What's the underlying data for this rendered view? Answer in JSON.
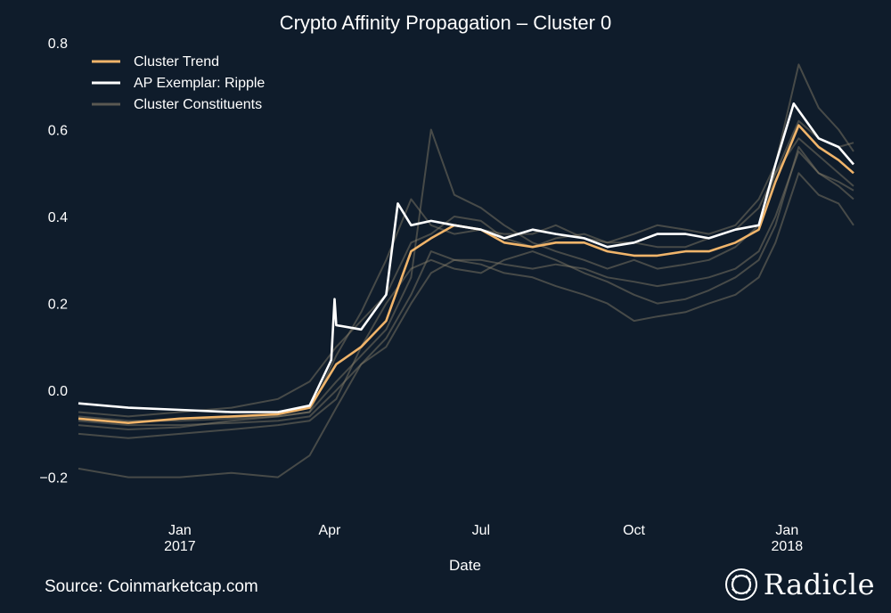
{
  "chart_data": {
    "type": "line",
    "title": "Crypto Affinity Propagation – Cluster 0",
    "xlabel": "Date",
    "ylabel": "",
    "x_range": [
      "2016-11-01",
      "2018-02-10"
    ],
    "ylim": [
      -0.25,
      0.8
    ],
    "y_ticks": [
      "0.8",
      "0.6",
      "0.4",
      "0.2",
      "0.0",
      "−0.2"
    ],
    "x_ticks": [
      {
        "date": "2017-01-01",
        "label": "Jan",
        "sublabel": "2017"
      },
      {
        "date": "2017-04-01",
        "label": "Apr",
        "sublabel": ""
      },
      {
        "date": "2017-07-01",
        "label": "Jul",
        "sublabel": ""
      },
      {
        "date": "2017-10-01",
        "label": "Oct",
        "sublabel": ""
      },
      {
        "date": "2018-01-01",
        "label": "Jan",
        "sublabel": "2018"
      }
    ],
    "grid": false,
    "legend_position": "top-left",
    "legend": [
      "Cluster Trend",
      "AP Exemplar: Ripple",
      "Cluster Constituents"
    ],
    "series": [
      {
        "name": "Cluster Trend",
        "color": "#f0b46a",
        "role": "trend",
        "x": [
          "2016-11-01",
          "2016-12-01",
          "2017-01-01",
          "2017-02-01",
          "2017-03-01",
          "2017-03-20",
          "2017-04-05",
          "2017-04-20",
          "2017-05-05",
          "2017-05-20",
          "2017-06-01",
          "2017-06-15",
          "2017-07-01",
          "2017-07-15",
          "2017-08-01",
          "2017-08-15",
          "2017-09-01",
          "2017-09-15",
          "2017-10-01",
          "2017-10-15",
          "2017-11-01",
          "2017-11-15",
          "2017-12-01",
          "2017-12-15",
          "2017-12-25",
          "2018-01-08",
          "2018-01-20",
          "2018-02-01",
          "2018-02-10"
        ],
        "y": [
          -0.065,
          -0.075,
          -0.065,
          -0.06,
          -0.055,
          -0.04,
          0.06,
          0.1,
          0.16,
          0.32,
          0.35,
          0.38,
          0.37,
          0.34,
          0.33,
          0.34,
          0.34,
          0.32,
          0.31,
          0.31,
          0.32,
          0.32,
          0.34,
          0.37,
          0.48,
          0.61,
          0.56,
          0.53,
          0.5
        ]
      },
      {
        "name": "AP Exemplar: Ripple",
        "color": "#ffffff",
        "role": "exemplar",
        "x": [
          "2016-11-01",
          "2016-12-01",
          "2017-01-01",
          "2017-02-01",
          "2017-03-01",
          "2017-03-20",
          "2017-04-02",
          "2017-04-04",
          "2017-04-05",
          "2017-04-20",
          "2017-05-05",
          "2017-05-12",
          "2017-05-20",
          "2017-06-01",
          "2017-06-15",
          "2017-07-01",
          "2017-07-15",
          "2017-08-01",
          "2017-08-15",
          "2017-09-01",
          "2017-09-15",
          "2017-10-01",
          "2017-10-15",
          "2017-11-01",
          "2017-11-15",
          "2017-12-01",
          "2017-12-15",
          "2017-12-25",
          "2018-01-05",
          "2018-01-20",
          "2018-02-01",
          "2018-02-10"
        ],
        "y": [
          -0.03,
          -0.04,
          -0.045,
          -0.05,
          -0.05,
          -0.035,
          0.07,
          0.21,
          0.15,
          0.14,
          0.22,
          0.43,
          0.38,
          0.39,
          0.38,
          0.37,
          0.35,
          0.37,
          0.36,
          0.35,
          0.33,
          0.34,
          0.36,
          0.36,
          0.35,
          0.37,
          0.38,
          0.52,
          0.66,
          0.58,
          0.56,
          0.52
        ]
      },
      {
        "name": "Cluster Constituents",
        "color": "#8c826c",
        "role": "constituent",
        "x": [
          "2016-11-01",
          "2016-12-01",
          "2017-01-01",
          "2017-02-01",
          "2017-03-01",
          "2017-03-20",
          "2017-04-05",
          "2017-04-20",
          "2017-05-05",
          "2017-05-20",
          "2017-06-01",
          "2017-06-15",
          "2017-07-01",
          "2017-07-15",
          "2017-08-01",
          "2017-08-15",
          "2017-09-01",
          "2017-09-15",
          "2017-10-01",
          "2017-10-15",
          "2017-11-01",
          "2017-11-15",
          "2017-12-01",
          "2017-12-15",
          "2017-12-25",
          "2018-01-08",
          "2018-01-20",
          "2018-02-01",
          "2018-02-10"
        ],
        "y": [
          -0.08,
          -0.09,
          -0.085,
          -0.07,
          -0.06,
          -0.05,
          0.08,
          0.18,
          0.3,
          0.44,
          0.38,
          0.36,
          0.37,
          0.36,
          0.36,
          0.38,
          0.35,
          0.34,
          0.36,
          0.38,
          0.37,
          0.36,
          0.38,
          0.44,
          0.52,
          0.75,
          0.65,
          0.6,
          0.55
        ]
      },
      {
        "name": "Cluster Constituents",
        "color": "#8c826c",
        "role": "constituent",
        "x": [
          "2016-11-01",
          "2016-12-01",
          "2017-01-01",
          "2017-02-01",
          "2017-03-01",
          "2017-03-20",
          "2017-04-05",
          "2017-04-20",
          "2017-05-05",
          "2017-05-20",
          "2017-06-01",
          "2017-06-15",
          "2017-07-01",
          "2017-07-15",
          "2017-08-01",
          "2017-08-15",
          "2017-09-01",
          "2017-09-15",
          "2017-10-01",
          "2017-10-15",
          "2017-11-01",
          "2017-11-15",
          "2017-12-01",
          "2017-12-15",
          "2017-12-25",
          "2018-01-08",
          "2018-01-20",
          "2018-02-01",
          "2018-02-10"
        ],
        "y": [
          -0.06,
          -0.07,
          -0.07,
          -0.065,
          -0.06,
          -0.05,
          0.02,
          0.08,
          0.14,
          0.26,
          0.6,
          0.45,
          0.42,
          0.38,
          0.34,
          0.32,
          0.3,
          0.28,
          0.3,
          0.28,
          0.29,
          0.3,
          0.33,
          0.38,
          0.5,
          0.58,
          0.54,
          0.5,
          0.47
        ]
      },
      {
        "name": "Cluster Constituents",
        "color": "#8c826c",
        "role": "constituent",
        "x": [
          "2016-11-01",
          "2016-12-01",
          "2017-01-01",
          "2017-02-01",
          "2017-03-01",
          "2017-03-20",
          "2017-04-05",
          "2017-04-20",
          "2017-05-05",
          "2017-05-20",
          "2017-06-01",
          "2017-06-15",
          "2017-07-01",
          "2017-07-15",
          "2017-08-01",
          "2017-08-15",
          "2017-09-01",
          "2017-09-15",
          "2017-10-01",
          "2017-10-15",
          "2017-11-01",
          "2017-11-15",
          "2017-12-01",
          "2017-12-15",
          "2017-12-25",
          "2018-01-08",
          "2018-01-20",
          "2018-02-01",
          "2018-02-10"
        ],
        "y": [
          -0.1,
          -0.11,
          -0.1,
          -0.09,
          -0.08,
          -0.07,
          -0.02,
          0.1,
          0.2,
          0.28,
          0.3,
          0.28,
          0.27,
          0.3,
          0.32,
          0.3,
          0.27,
          0.25,
          0.22,
          0.2,
          0.21,
          0.23,
          0.26,
          0.3,
          0.38,
          0.56,
          0.5,
          0.47,
          0.44
        ]
      },
      {
        "name": "Cluster Constituents",
        "color": "#8c826c",
        "role": "constituent",
        "x": [
          "2016-11-01",
          "2016-12-01",
          "2017-01-01",
          "2017-02-01",
          "2017-03-01",
          "2017-03-20",
          "2017-04-05",
          "2017-04-20",
          "2017-05-05",
          "2017-05-20",
          "2017-06-01",
          "2017-06-15",
          "2017-07-01",
          "2017-07-15",
          "2017-08-01",
          "2017-08-15",
          "2017-09-01",
          "2017-09-15",
          "2017-10-01",
          "2017-10-15",
          "2017-11-01",
          "2017-11-15",
          "2017-12-01",
          "2017-12-15",
          "2017-12-25",
          "2018-01-08",
          "2018-01-20",
          "2018-02-01",
          "2018-02-10"
        ],
        "y": [
          -0.18,
          -0.2,
          -0.2,
          -0.19,
          -0.2,
          -0.15,
          -0.04,
          0.06,
          0.12,
          0.22,
          0.32,
          0.3,
          0.29,
          0.27,
          0.26,
          0.24,
          0.22,
          0.2,
          0.16,
          0.17,
          0.18,
          0.2,
          0.22,
          0.26,
          0.34,
          0.5,
          0.45,
          0.43,
          0.38
        ]
      },
      {
        "name": "Cluster Constituents",
        "color": "#8c826c",
        "role": "constituent",
        "x": [
          "2016-11-01",
          "2016-12-01",
          "2017-01-01",
          "2017-02-01",
          "2017-03-01",
          "2017-03-20",
          "2017-04-05",
          "2017-04-20",
          "2017-05-05",
          "2017-05-20",
          "2017-06-01",
          "2017-06-15",
          "2017-07-01",
          "2017-07-15",
          "2017-08-01",
          "2017-08-15",
          "2017-09-01",
          "2017-09-15",
          "2017-10-01",
          "2017-10-15",
          "2017-11-01",
          "2017-11-15",
          "2017-12-01",
          "2017-12-15",
          "2017-12-25",
          "2018-01-08",
          "2018-01-20",
          "2018-02-01",
          "2018-02-10"
        ],
        "y": [
          -0.05,
          -0.06,
          -0.05,
          -0.04,
          -0.02,
          0.02,
          0.1,
          0.16,
          0.22,
          0.34,
          0.36,
          0.4,
          0.39,
          0.35,
          0.33,
          0.35,
          0.36,
          0.34,
          0.34,
          0.33,
          0.33,
          0.35,
          0.37,
          0.42,
          0.5,
          0.62,
          0.58,
          0.56,
          0.57
        ]
      },
      {
        "name": "Cluster Constituents",
        "color": "#8c826c",
        "role": "constituent",
        "x": [
          "2016-11-01",
          "2016-12-01",
          "2017-01-01",
          "2017-02-01",
          "2017-03-01",
          "2017-03-20",
          "2017-04-05",
          "2017-04-20",
          "2017-05-05",
          "2017-05-20",
          "2017-06-01",
          "2017-06-15",
          "2017-07-01",
          "2017-07-15",
          "2017-08-01",
          "2017-08-15",
          "2017-09-01",
          "2017-09-15",
          "2017-10-01",
          "2017-10-15",
          "2017-11-01",
          "2017-11-15",
          "2017-12-01",
          "2017-12-15",
          "2017-12-25",
          "2018-01-08",
          "2018-01-20",
          "2018-02-01",
          "2018-02-10"
        ],
        "y": [
          -0.07,
          -0.08,
          -0.08,
          -0.075,
          -0.07,
          -0.06,
          0.0,
          0.06,
          0.1,
          0.2,
          0.27,
          0.3,
          0.3,
          0.29,
          0.28,
          0.29,
          0.28,
          0.26,
          0.25,
          0.24,
          0.25,
          0.26,
          0.28,
          0.32,
          0.4,
          0.55,
          0.5,
          0.48,
          0.46
        ]
      }
    ]
  },
  "source": "Source: Coinmarketcap.com",
  "brand": {
    "name": "Radicle",
    "logo_icon": "radicle-knot-icon"
  }
}
